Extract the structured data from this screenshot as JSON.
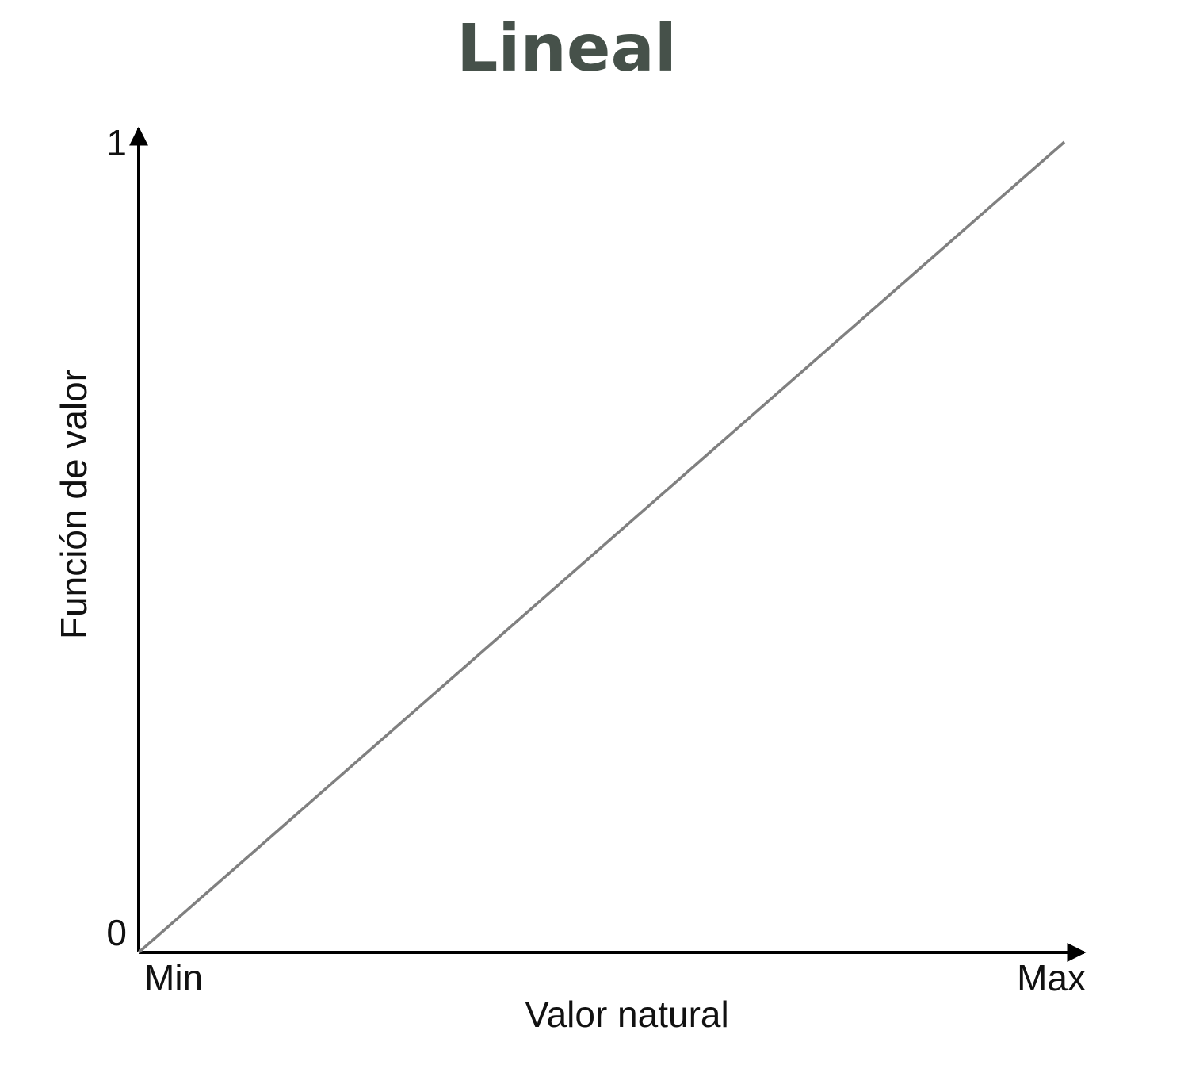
{
  "chart_data": {
    "type": "line",
    "title": "Lineal",
    "xlabel": "Valor natural",
    "ylabel": "Función de valor",
    "x_tick_labels": [
      "Min",
      "Max"
    ],
    "y_tick_labels": [
      "0",
      "1"
    ],
    "xlim": [
      0,
      1
    ],
    "ylim": [
      0,
      1
    ],
    "grid": false,
    "series": [
      {
        "x": [
          0,
          1
        ],
        "values": [
          0,
          1
        ]
      }
    ],
    "colors": {
      "title": "#46514a",
      "axis": "#000000",
      "line": "#808080",
      "text": "#111111"
    }
  }
}
